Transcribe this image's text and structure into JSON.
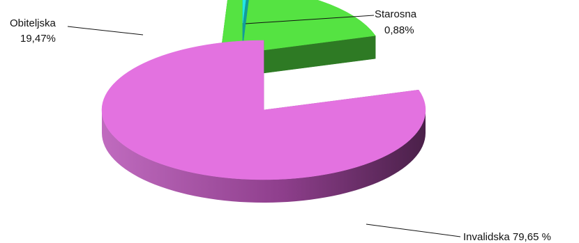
{
  "chart_data": {
    "type": "pie",
    "style": "3d-exploded",
    "slices": [
      {
        "label": "Starosna",
        "value": 0.88,
        "value_label": "0,88%",
        "color": "#22e6e6",
        "side_color": "#139b9b"
      },
      {
        "label": "Obiteljska",
        "value": 19.47,
        "value_label": "19,47%",
        "color": "#55e342",
        "side_color": "#2e7a24"
      },
      {
        "label": "Invalidska",
        "value": 79.65,
        "value_label": "79,65 %",
        "color": "#e372e0",
        "side_color": "#9a4a98"
      }
    ],
    "labels": {
      "starosna_name": "Starosna",
      "starosna_value": "0,88%",
      "obiteljska_name": "Obiteljska",
      "obiteljska_value": "19,47%",
      "invalidska": "Invalidska 79,65 %"
    },
    "title": "",
    "legend": "none"
  }
}
